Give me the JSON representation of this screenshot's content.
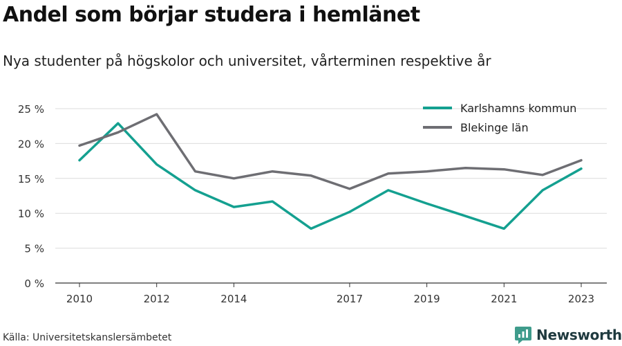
{
  "title": "Andel som börjar studera i hemlänet",
  "subtitle": "Nya studenter på högskolor och universitet, vårterminen respektive år",
  "source": "Källa: Universitetskanslersämbetet",
  "brand": {
    "name": "Newsworthy",
    "icon": "newsworthy-logo-icon",
    "color": "#3f9c8c"
  },
  "chart_data": {
    "type": "line",
    "x": [
      2010,
      2011,
      2012,
      2013,
      2014,
      2015,
      2016,
      2017,
      2018,
      2019,
      2020,
      2021,
      2022,
      2023
    ],
    "x_ticks": [
      2010,
      2012,
      2014,
      2017,
      2019,
      2021,
      2023
    ],
    "y_ticks": [
      0,
      5,
      10,
      15,
      20,
      25
    ],
    "y_tick_labels": [
      "0 %",
      "5 %",
      "10 %",
      "15 %",
      "20 %",
      "25 %"
    ],
    "ylim": [
      0,
      25
    ],
    "grid": true,
    "legend_position": "top-right",
    "series": [
      {
        "name": "Karlshamns kommun",
        "color": "#14a090",
        "values": [
          17.6,
          22.9,
          17.0,
          13.3,
          10.9,
          11.7,
          7.8,
          10.2,
          13.3,
          11.4,
          9.6,
          7.8,
          13.3,
          16.4
        ]
      },
      {
        "name": "Blekinge län",
        "color": "#6e6e73",
        "values": [
          19.7,
          21.6,
          24.2,
          16.0,
          15.0,
          16.0,
          15.4,
          13.5,
          15.7,
          16.0,
          16.5,
          16.3,
          15.5,
          17.6
        ]
      }
    ]
  }
}
